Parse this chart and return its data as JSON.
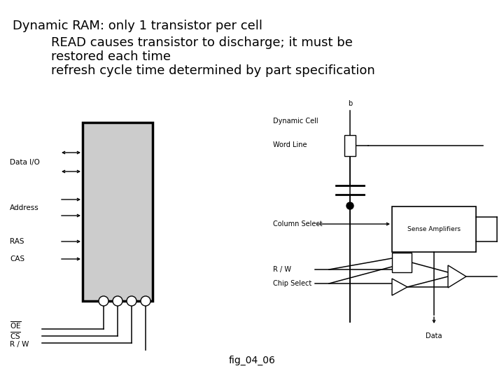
{
  "title_lines": [
    "Dynamic RAM: only 1 transistor per cell",
    "    READ causes transistor to discharge; it must be",
    "    restored each time",
    "    refresh cycle time determined by part specification"
  ],
  "fig_label": "fig_04_06",
  "bg_color": "#ffffff",
  "text_color": "#000000",
  "title_fontsize": 13,
  "fig_label_fontsize": 10
}
